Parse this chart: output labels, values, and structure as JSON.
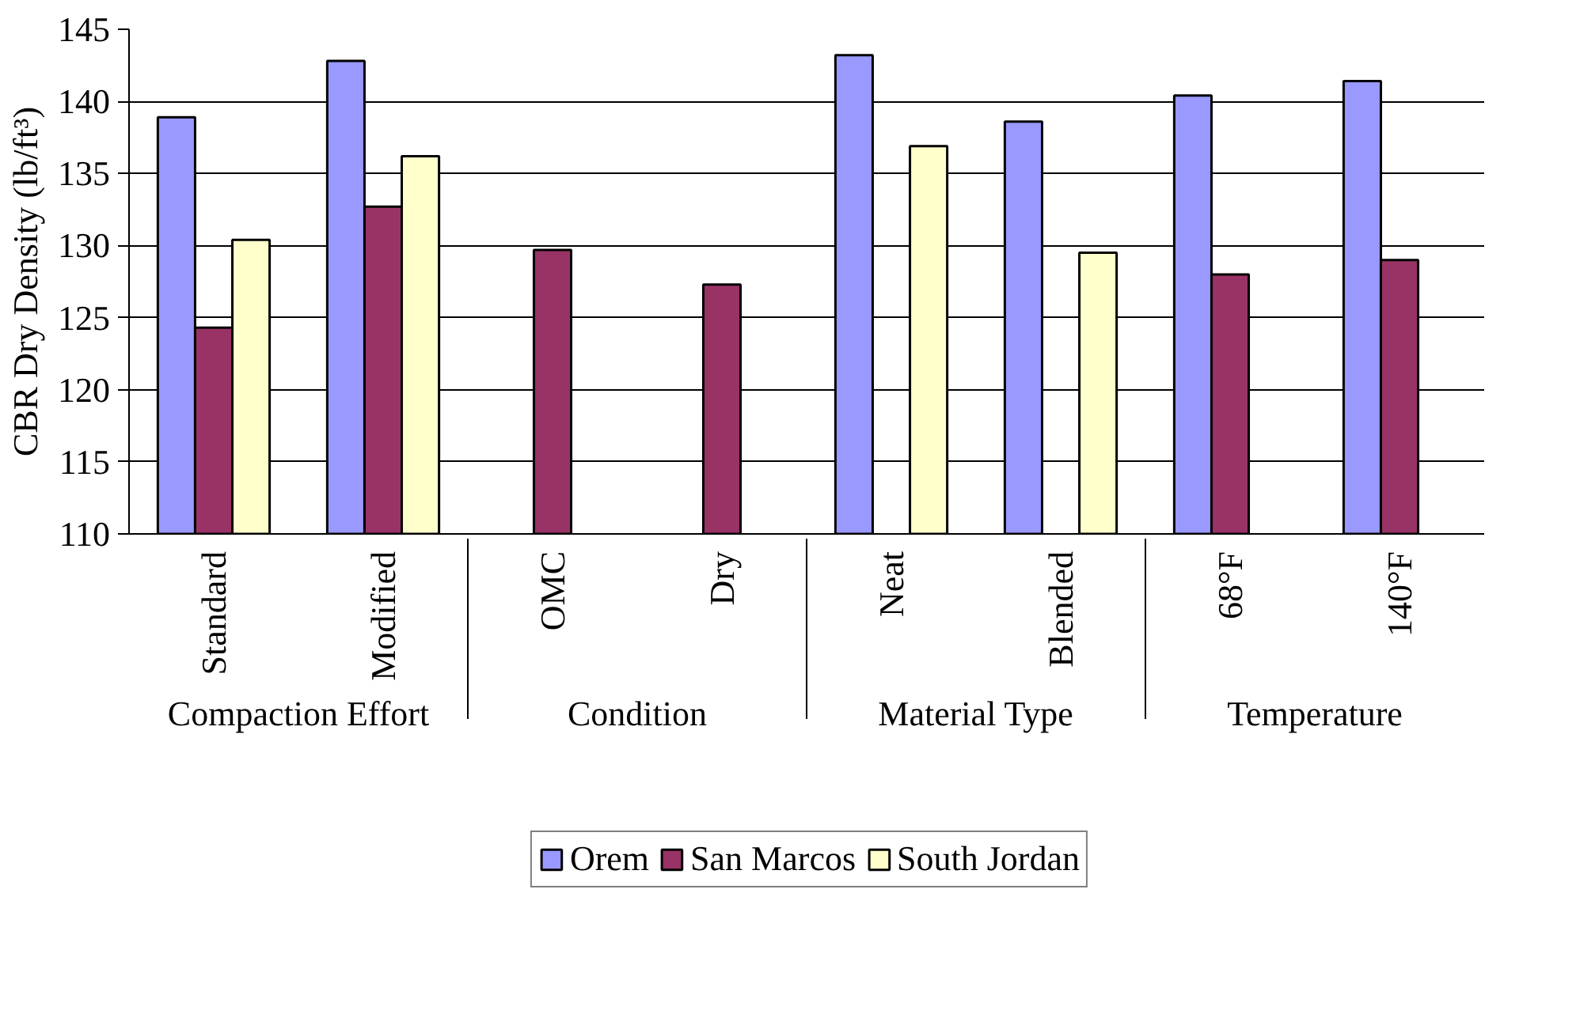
{
  "chart_data": {
    "type": "bar",
    "ylabel": "CBR Dry Density (lb/ft³)",
    "categories": [
      "Standard",
      "Modified",
      "OMC",
      "Dry",
      "Neat",
      "Blended",
      "68°F",
      "140°F"
    ],
    "annotations": [
      "Compaction Effort",
      "Condition",
      "Material Type",
      "Temperature"
    ],
    "series": [
      {
        "name": "Orem",
        "color": "#9999ff",
        "values": [
          138.9,
          142.8,
          null,
          null,
          143.2,
          138.6,
          140.4,
          141.4
        ]
      },
      {
        "name": "San Marcos",
        "color": "#993366",
        "values": [
          124.3,
          132.7,
          129.7,
          127.3,
          null,
          null,
          128.0,
          129.0
        ]
      },
      {
        "name": "South Jordan",
        "color": "#ffffcc",
        "values": [
          130.4,
          136.2,
          null,
          null,
          136.9,
          129.5,
          null,
          null
        ]
      }
    ],
    "ylim": [
      110,
      145
    ],
    "yticks": [
      110,
      115,
      120,
      125,
      130,
      135,
      140,
      145
    ],
    "grid": "y",
    "legend": "bottom"
  }
}
